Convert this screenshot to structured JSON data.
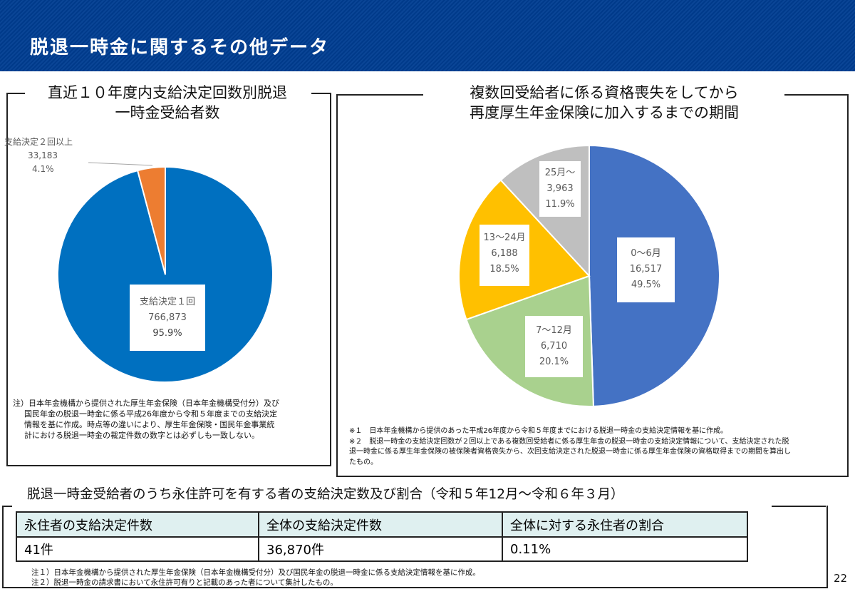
{
  "header": {
    "title": "脱退一時金に関するその他データ"
  },
  "left_panel": {
    "title_line1": "直近１０年度内支給決定回数別脱退",
    "title_line2": "一時金受給者数",
    "note_lines": [
      "注）日本年金機構から提供された厚生年金保険（日本年金機構受付分）及び",
      "国民年金の脱退一時金に係る平成26年度から令和５年度までの支給決定",
      "情報を基に作成。時点等の違いにより、厚生年金保険・国民年金事業統",
      "計における脱退一時金の裁定件数の数字とは必ずしも一致しない。"
    ]
  },
  "right_panel": {
    "title_line1": "複数回受給者に係る資格喪失をしてから",
    "title_line2": "再度厚生年金保険に加入するまでの期間",
    "note_lines": [
      "※１　日本年金機構から提供のあった平成26年度から令和５年度までにおける脱退一時金の支給決定情報を基に作成。",
      "※２　脱退一時金の支給決定回数が２回以上である複数回受給者に係る厚生年金の脱退一時金の支給決定情報について、支給決定された脱",
      "退一時金に係る厚生年金保険の被保険者資格喪失から、次回支給決定された脱退一時金に係る厚生年金保険の資格取得までの期間を算出し",
      "たもの。"
    ]
  },
  "chart_data": [
    {
      "type": "pie",
      "title": "直近１０年度内支給決定回数別脱退一時金受給者数",
      "slices": [
        {
          "label": "支給決定１回",
          "value": 766873,
          "value_text": "766,873",
          "percent_text": "95.9%",
          "color": "#0070c0"
        },
        {
          "label": "支給決定２回以上",
          "value": 33183,
          "value_text": "33,183",
          "percent_text": "4.1%",
          "color": "#ed7d31"
        }
      ],
      "start": "top",
      "direction": "counterclockwise-from-top (largest clockwise)"
    },
    {
      "type": "pie",
      "title": "複数回受給者に係る資格喪失をしてから再度厚生年金保険に加入するまでの期間",
      "slices": [
        {
          "label": "0～6月",
          "value": 16517,
          "value_text": "16,517",
          "percent_text": "49.5%",
          "color": "#4472c4"
        },
        {
          "label": "7～12月",
          "value": 6710,
          "value_text": "6,710",
          "percent_text": "20.1%",
          "color": "#a9d18e"
        },
        {
          "label": "13～24月",
          "value": 6188,
          "value_text": "6,188",
          "percent_text": "18.5%",
          "color": "#ffc000"
        },
        {
          "label": "25月～",
          "value": 3963,
          "value_text": "3,963",
          "percent_text": "11.9%",
          "color": "#bfbfbf"
        }
      ],
      "start": "top",
      "direction": "clockwise"
    }
  ],
  "bottom_section": {
    "title": "脱退一時金受給者のうち永住許可を有する者の支給決定数及び割合（令和５年12月～令和６年３月）",
    "table": {
      "headers": [
        "永住者の支給決定件数",
        "全体の支給決定件数",
        "全体に対する永住者の割合"
      ],
      "row": [
        "41件",
        "36,870件",
        "0.11%"
      ]
    },
    "notes": [
      "注１）日本年金機構から提供された厚生年金保険（日本年金機構受付分）及び国民年金の脱退一時金に係る支給決定情報を基に作成。",
      "注２）脱退一時金の請求書において永住許可有りと記載のあった者について集計したもの。"
    ]
  },
  "page_number": "22"
}
